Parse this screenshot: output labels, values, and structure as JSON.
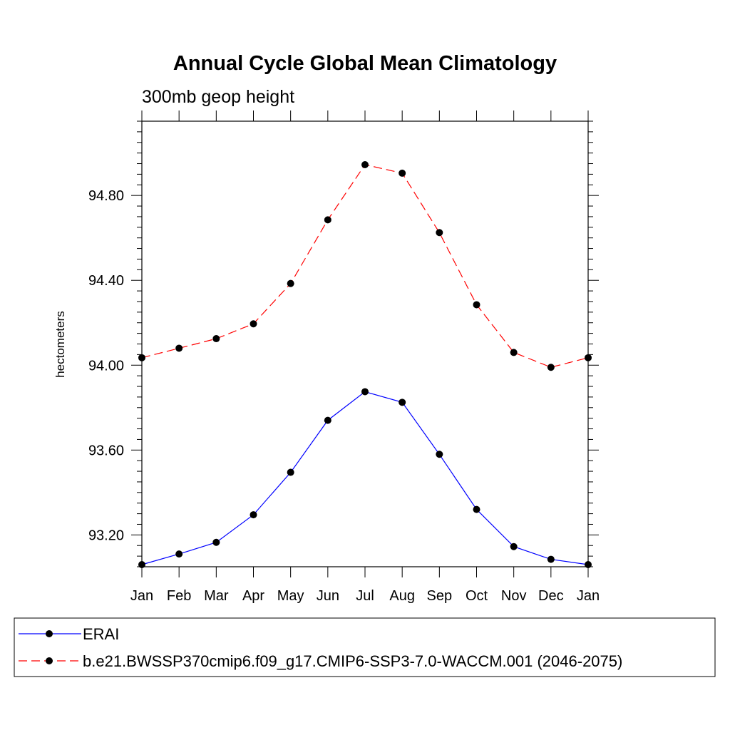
{
  "chart_data": {
    "type": "line",
    "title": "Annual Cycle Global Mean Climatology",
    "subtitle": "300mb geop height",
    "xlabel": "",
    "ylabel": "hectometers",
    "categories": [
      "Jan",
      "Feb",
      "Mar",
      "Apr",
      "May",
      "Jun",
      "Jul",
      "Aug",
      "Sep",
      "Oct",
      "Nov",
      "Dec",
      "Jan"
    ],
    "ylim": [
      93.05,
      95.15
    ],
    "yticks": [
      93.2,
      93.6,
      94.0,
      94.4,
      94.8
    ],
    "ytick_labels": [
      "93.20",
      "93.60",
      "94.00",
      "94.40",
      "94.80"
    ],
    "ytick_minor_step": 0.05,
    "grid": false,
    "legend_position": "bottom",
    "series": [
      {
        "name": "ERAI",
        "color": "#0000ff",
        "style": "solid",
        "values": [
          93.06,
          93.11,
          93.165,
          93.295,
          93.495,
          93.74,
          93.875,
          93.825,
          93.58,
          93.32,
          93.145,
          93.085,
          93.06
        ]
      },
      {
        "name": "b.e21.BWSSP370cmip6.f09_g17.CMIP6-SSP3-7.0-WACCM.001 (2046-2075)",
        "color": "#ff0000",
        "style": "dashed",
        "values": [
          94.035,
          94.08,
          94.125,
          94.195,
          94.385,
          94.685,
          94.945,
          94.905,
          94.625,
          94.285,
          94.06,
          93.99,
          94.035
        ]
      }
    ]
  }
}
